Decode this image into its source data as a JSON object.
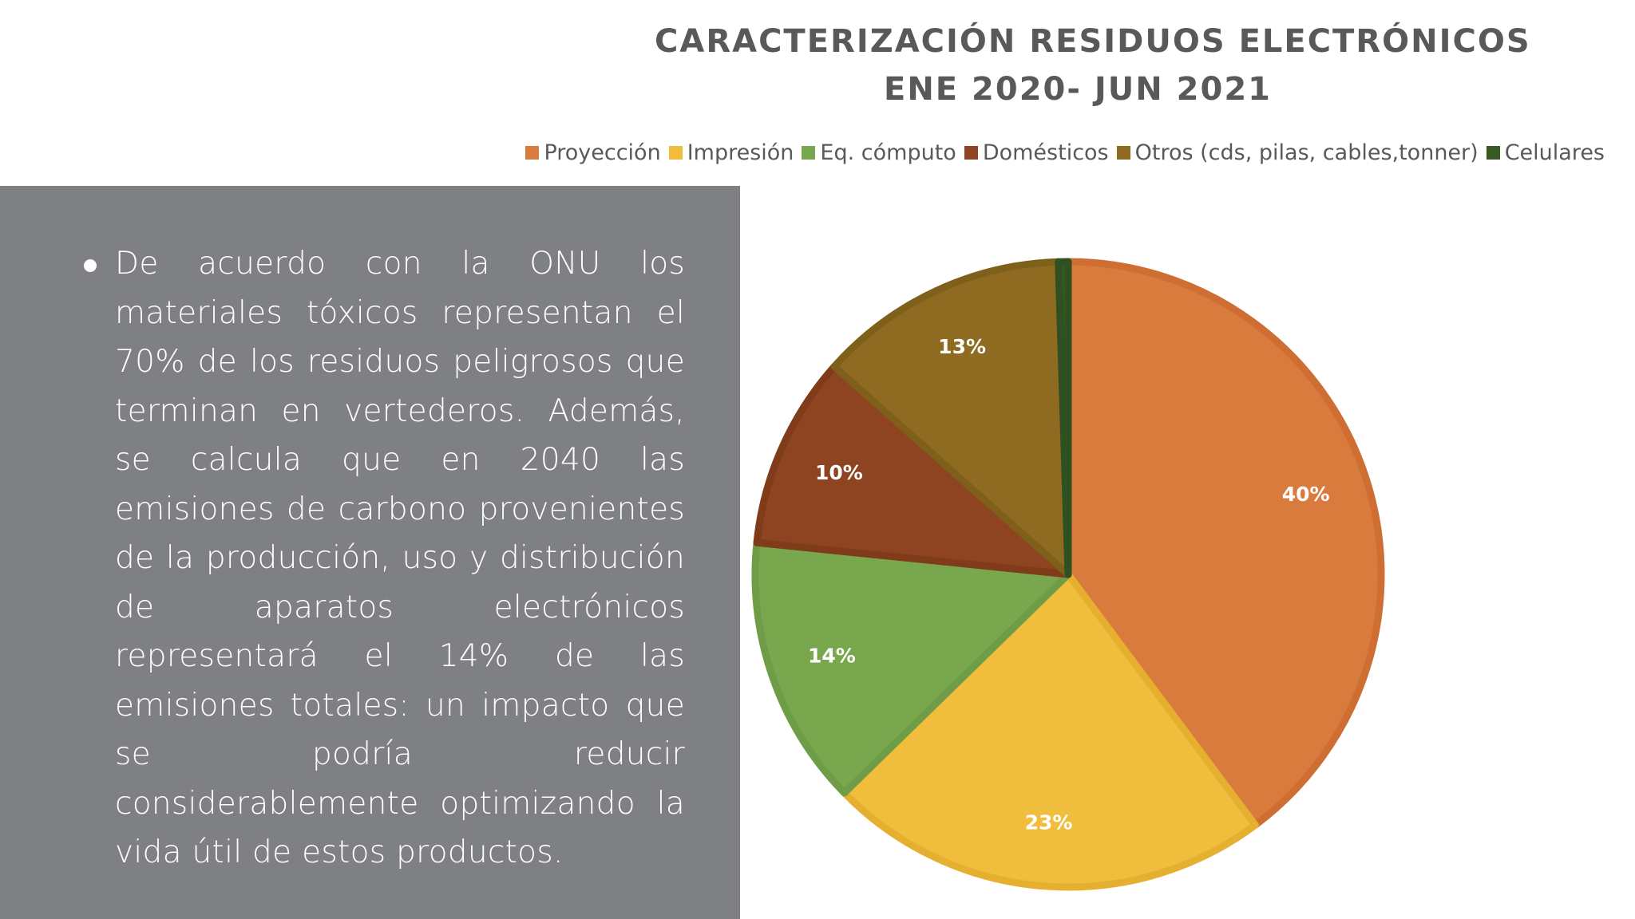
{
  "chart_data": {
    "type": "pie",
    "title_lines": [
      "CARACTERIZACIÓN RESIDUOS ELECTRÓNICOS",
      "ENE 2020- JUN 2021"
    ],
    "legend_placement": "top",
    "categories": [
      "Proyección",
      "Impresión",
      "Eq. cómputo",
      "Domésticos",
      "Otros (cds, pilas, cables,tonner)",
      "Celulares"
    ],
    "values": [
      40,
      23,
      14,
      10,
      13,
      0.5
    ],
    "labels": [
      "40%",
      "23%",
      "14%",
      "10%",
      "13%",
      ""
    ],
    "colors": [
      "#d97b3c",
      "#f0bd3c",
      "#79a74e",
      "#8e4420",
      "#8e6b20",
      "#375a25"
    ],
    "edge_colors": [
      "#cf6e33",
      "#e5b030",
      "#6f9c46",
      "#7f3b1a",
      "#7f601b",
      "#2f5020"
    ]
  },
  "text_panel": {
    "paragraph": "De acuerdo con la ONU los materiales tóxicos representan el 70% de los residuos peligrosos que terminan en vertederos. Además, se calcula que en 2040 las emisiones de carbono provenientes de la producción, uso y distribución de aparatos electrónicos representará el 14% de las emisiones totales: un impacto que se podría reducir considerablemente optimizando la vida útil de estos productos."
  }
}
